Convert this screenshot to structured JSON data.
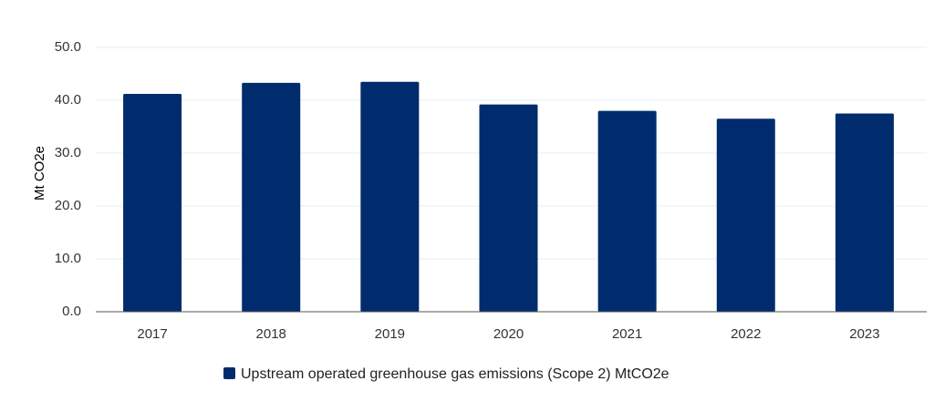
{
  "chart_data": {
    "type": "bar",
    "categories": [
      "2017",
      "2018",
      "2019",
      "2020",
      "2021",
      "2022",
      "2023"
    ],
    "series": [
      {
        "name": "Upstream operated greenhouse gas emissions (Scope 2) MtCO2e",
        "values": [
          41.2,
          43.3,
          43.5,
          39.2,
          38.0,
          36.5,
          37.5
        ],
        "color": "#002c6e"
      }
    ],
    "y_ticks": [
      "0.0",
      "10.0",
      "20.0",
      "30.0",
      "40.0",
      "50.0"
    ],
    "ylabel": "Mt CO2e",
    "xlabel": "",
    "ylim": [
      0,
      50
    ],
    "grid": true,
    "legend_position": "bottom-center"
  }
}
